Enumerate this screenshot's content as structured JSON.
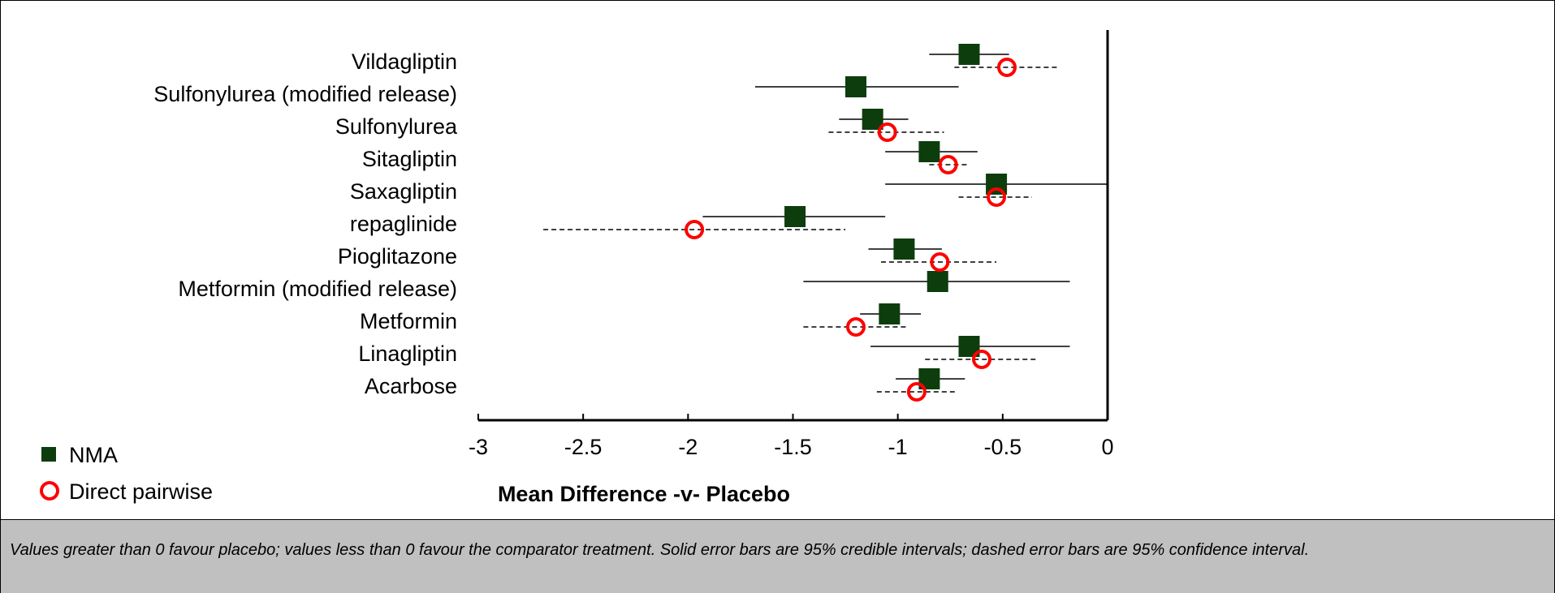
{
  "colors": {
    "nma_marker": "#0d3d0d",
    "pairwise_marker": "#ff0000",
    "lines": "#000000",
    "caption_background": "#c0c0c0"
  },
  "chart_data": {
    "type": "scatter",
    "title": "",
    "xlabel": "Mean Difference -v- Placebo",
    "ylabel": "",
    "xlim": [
      -3,
      0
    ],
    "xticks": [
      "-3",
      "-2.5",
      "-2",
      "-1.5",
      "-1",
      "-0.5",
      "0"
    ],
    "grid": false,
    "legend_position": "bottom-left",
    "categories": [
      "Vildagliptin",
      "Sulfonylurea (modified release)",
      "Sulfonylurea",
      "Sitagliptin",
      "Saxagliptin",
      "repaglinide",
      "Pioglitazone",
      "Metformin (modified release)",
      "Metformin",
      "Linagliptin",
      "Acarbose"
    ],
    "series": [
      {
        "name": "NMA",
        "marker": "filled-square",
        "interval": "solid",
        "points": [
          {
            "category": "Vildagliptin",
            "value": -0.66,
            "low": -0.85,
            "high": -0.47
          },
          {
            "category": "Sulfonylurea (modified release)",
            "value": -1.2,
            "low": -1.68,
            "high": -0.71
          },
          {
            "category": "Sulfonylurea",
            "value": -1.12,
            "low": -1.28,
            "high": -0.95
          },
          {
            "category": "Sitagliptin",
            "value": -0.85,
            "low": -1.06,
            "high": -0.62
          },
          {
            "category": "Saxagliptin",
            "value": -0.53,
            "low": -1.06,
            "high": 0.0
          },
          {
            "category": "repaglinide",
            "value": -1.49,
            "low": -1.93,
            "high": -1.06
          },
          {
            "category": "Pioglitazone",
            "value": -0.97,
            "low": -1.14,
            "high": -0.79
          },
          {
            "category": "Metformin (modified release)",
            "value": -0.81,
            "low": -1.45,
            "high": -0.18
          },
          {
            "category": "Metformin",
            "value": -1.04,
            "low": -1.18,
            "high": -0.89
          },
          {
            "category": "Linagliptin",
            "value": -0.66,
            "low": -1.13,
            "high": -0.18
          },
          {
            "category": "Acarbose",
            "value": -0.85,
            "low": -1.01,
            "high": -0.68
          }
        ]
      },
      {
        "name": "Direct pairwise",
        "marker": "open-circle",
        "interval": "dashed",
        "points": [
          {
            "category": "Vildagliptin",
            "value": -0.48,
            "low": -0.73,
            "high": -0.23
          },
          {
            "category": "Sulfonylurea",
            "value": -1.05,
            "low": -1.33,
            "high": -0.78
          },
          {
            "category": "Sitagliptin",
            "value": -0.76,
            "low": -0.85,
            "high": -0.67
          },
          {
            "category": "Saxagliptin",
            "value": -0.53,
            "low": -0.71,
            "high": -0.36
          },
          {
            "category": "repaglinide",
            "value": -1.97,
            "low": -2.69,
            "high": -1.25
          },
          {
            "category": "Pioglitazone",
            "value": -0.8,
            "low": -1.08,
            "high": -0.53
          },
          {
            "category": "Metformin",
            "value": -1.2,
            "low": -1.45,
            "high": -0.95
          },
          {
            "category": "Linagliptin",
            "value": -0.6,
            "low": -0.87,
            "high": -0.33
          },
          {
            "category": "Acarbose",
            "value": -0.91,
            "low": -1.1,
            "high": -0.72
          }
        ]
      }
    ]
  },
  "caption": "Values greater than 0 favour placebo; values less than 0 favour the comparator treatment. Solid error bars are 95% credible intervals; dashed error bars are 95% confidence interval."
}
